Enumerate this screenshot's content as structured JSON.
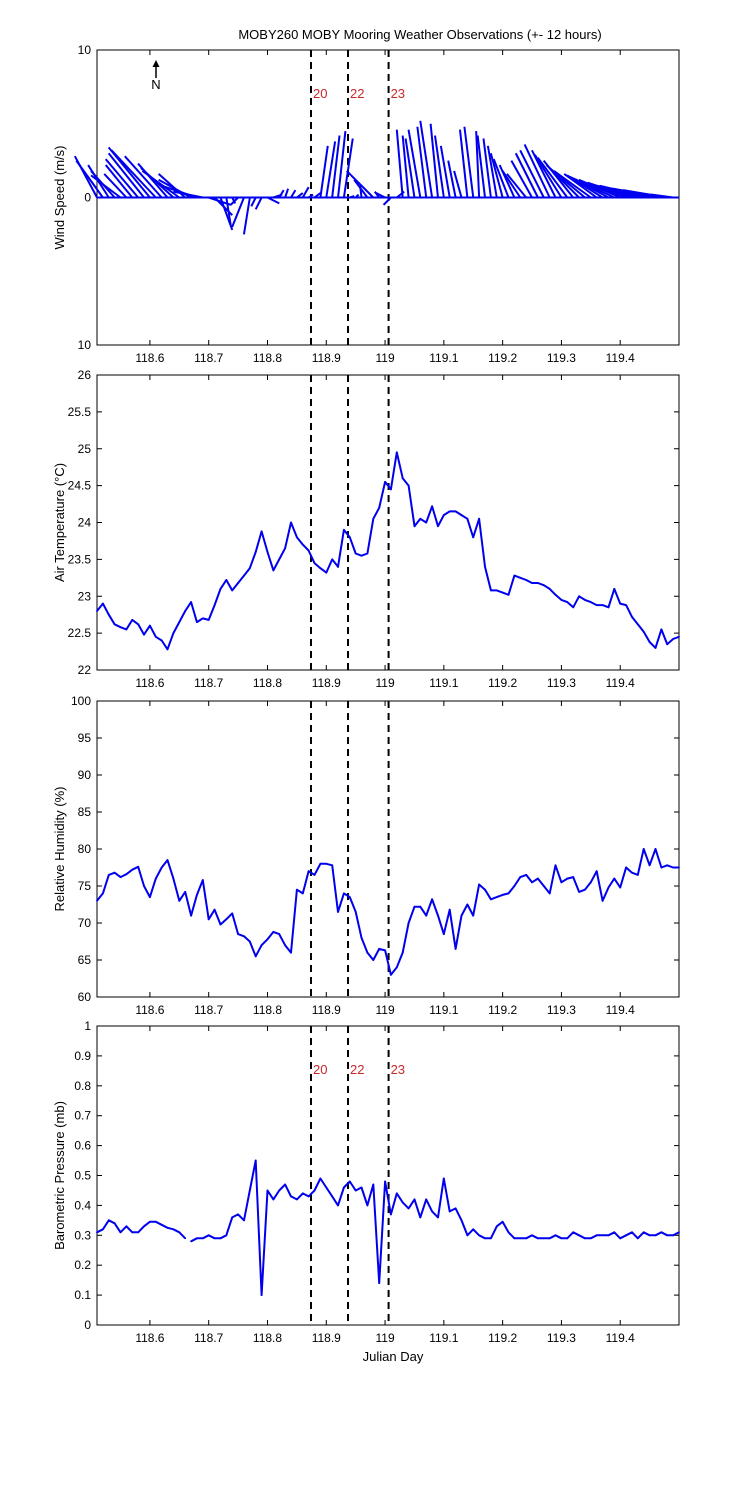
{
  "title": "MOBY260 MOBY Mooring Weather Observations (+- 12 hours)",
  "north_label": "N",
  "xlabel": "Julian Day",
  "x_ticks": [
    118.6,
    118.7,
    118.8,
    118.9,
    119,
    119.1,
    119.2,
    119.3,
    119.4
  ],
  "xlim": [
    118.51,
    119.5
  ],
  "event_lines": [
    {
      "x": 118.874,
      "label": "20"
    },
    {
      "x": 118.937,
      "label": "22"
    },
    {
      "x": 119.006,
      "label": "23"
    }
  ],
  "colors": {
    "line": "#0000ee",
    "marker": "#c8282a",
    "event": "#000000"
  },
  "chart_data": [
    {
      "type": "line",
      "ylabel": "Wind Speed (m/s)",
      "ylim": [
        -10,
        10
      ],
      "y_ticks": [
        10,
        0,
        10
      ],
      "marker_labels": true,
      "stick_plot": true,
      "x": [
        118.51,
        118.52,
        118.53,
        118.54,
        118.55,
        118.56,
        118.57,
        118.58,
        118.59,
        118.6,
        118.61,
        118.62,
        118.63,
        118.64,
        118.65,
        118.66,
        118.67,
        118.68,
        118.69,
        118.7,
        118.71,
        118.72,
        118.73,
        118.74,
        118.75,
        118.76,
        118.77,
        118.78,
        118.79,
        118.8,
        118.81,
        118.82,
        118.83,
        118.84,
        118.85,
        118.86,
        118.87,
        118.88,
        118.89,
        118.9,
        118.91,
        118.92,
        118.93,
        118.94,
        118.95,
        118.96,
        118.97,
        118.98,
        118.99,
        119.0,
        119.01,
        119.02,
        119.03,
        119.04,
        119.05,
        119.06,
        119.07,
        119.08,
        119.09,
        119.1,
        119.11,
        119.12,
        119.13,
        119.14,
        119.15,
        119.16,
        119.17,
        119.18,
        119.19,
        119.2,
        119.21,
        119.22,
        119.23,
        119.24,
        119.25,
        119.26,
        119.27,
        119.28,
        119.29,
        119.3,
        119.31,
        119.32,
        119.33,
        119.34,
        119.35,
        119.36,
        119.37,
        119.38,
        119.39,
        119.4,
        119.41,
        119.42,
        119.43,
        119.44,
        119.45,
        119.46,
        119.47,
        119.48,
        119.49
      ],
      "u": [
        -1.5,
        -1.8,
        -1.4,
        -1.6,
        -2.0,
        -1.5,
        -1.8,
        -2.2,
        -2.4,
        -2.8,
        -3.0,
        -2.5,
        -2.0,
        -2.2,
        -2.5,
        -1.8,
        -2.2,
        -2.4,
        -2.0,
        1.5,
        1.2,
        0.8,
        0.3,
        0.2,
        -0.5,
        -0.8,
        -0.4,
        -0.3,
        -0.4,
        0.8,
        0.6,
        0.3,
        0.2,
        0.3,
        0.4,
        0.4,
        0.3,
        0.4,
        0.5,
        0.6,
        0.5,
        0.5,
        0.6,
        0.3,
        0.2,
        -0.1,
        -0.9,
        -1.8,
        -0.3,
        -0.6,
        -0.5,
        0.5,
        -0.4,
        -0.4,
        -0.6,
        -0.8,
        -0.6,
        -0.8,
        -0.5,
        -0.6,
        -0.6,
        -0.5,
        -0.5,
        -0.5,
        -0.6,
        -0.2,
        -0.5,
        -0.5,
        -0.6,
        -0.8,
        -1.0,
        -1.0,
        -1.2,
        -1.3,
        -1.4,
        -1.5,
        -1.6,
        -1.7,
        -1.6,
        -1.8,
        -2.0,
        -2.0,
        -2.2,
        -2.4,
        -2.5,
        -2.2,
        -2.4,
        -2.6,
        -2.8,
        -2.8,
        -3.0,
        -3.0,
        -3.2,
        -3.2,
        -3.4,
        -3.5,
        -3.3,
        -3.0,
        -1.5
      ],
      "v": [
        2.8,
        2.5,
        2.2,
        1.8,
        1.5,
        1.6,
        2.2,
        2.6,
        3.0,
        3.4,
        3.2,
        2.8,
        2.3,
        2.0,
        1.8,
        1.6,
        1.2,
        0.8,
        0.4,
        -0.5,
        -1.2,
        -2.2,
        -1.9,
        -0.4,
        -0.5,
        -2.0,
        -2.5,
        -0.6,
        -0.8,
        -0.4,
        0.2,
        0.5,
        0.6,
        0.5,
        0.3,
        0.7,
        0.2,
        0.3,
        3.5,
        3.8,
        4.2,
        4.5,
        4.0,
        0.1,
        0.2,
        0.8,
        1.2,
        1.8,
        0.4,
        0.3,
        -0.5,
        0.4,
        4.6,
        4.2,
        4.0,
        4.6,
        4.8,
        5.2,
        5.0,
        4.2,
        3.5,
        2.5,
        1.8,
        4.6,
        4.8,
        4.5,
        4.2,
        4.0,
        3.5,
        3.0,
        2.6,
        2.2,
        1.8,
        1.6,
        2.5,
        3.0,
        3.2,
        3.6,
        3.2,
        2.9,
        2.7,
        2.5,
        2.2,
        2.0,
        1.8,
        1.6,
        1.5,
        1.4,
        1.3,
        1.2,
        1.1,
        1.0,
        0.9,
        0.8,
        0.8,
        0.7,
        0.6,
        0.5,
        0.2
      ]
    },
    {
      "type": "line",
      "ylabel": "Air Temperature (°C)",
      "ylim": [
        22,
        26
      ],
      "y_ticks": [
        22,
        22.5,
        23,
        23.5,
        24,
        24.5,
        25,
        25.5,
        26
      ],
      "marker_labels": false,
      "segments": [
        {
          "x": [
            118.51,
            118.52,
            118.53,
            118.54,
            118.55,
            118.56,
            118.57,
            118.58,
            118.59,
            118.6,
            118.61,
            118.62,
            118.63,
            118.64,
            118.65,
            118.66,
            118.67,
            118.68,
            118.69,
            118.7,
            118.71,
            118.72,
            118.73,
            118.74,
            118.75,
            118.76,
            118.77,
            118.78,
            118.79,
            118.8,
            118.81,
            118.82,
            118.83,
            118.84,
            118.85,
            118.86,
            118.87,
            118.88,
            118.89,
            118.9,
            118.91,
            118.92,
            118.93,
            118.94,
            118.95,
            118.96,
            118.97,
            118.98,
            118.99,
            119.0,
            119.01,
            119.02,
            119.03,
            119.04,
            119.05,
            119.06,
            119.07,
            119.08,
            119.09,
            119.1,
            119.11,
            119.12,
            119.13,
            119.14,
            119.15,
            119.16,
            119.17,
            119.18,
            119.19,
            119.2,
            119.21,
            119.22,
            119.23,
            119.24,
            119.25,
            119.26,
            119.27,
            119.28,
            119.29,
            119.3,
            119.31,
            119.32,
            119.33,
            119.34,
            119.35,
            119.36,
            119.37,
            119.38,
            119.39,
            119.4,
            119.41,
            119.42,
            119.43,
            119.44,
            119.45,
            119.46,
            119.47,
            119.48,
            119.49,
            119.5
          ],
          "y": [
            22.8,
            22.9,
            22.75,
            22.62,
            22.58,
            22.55,
            22.68,
            22.62,
            22.48,
            22.6,
            22.45,
            22.4,
            22.28,
            22.5,
            22.65,
            22.8,
            22.92,
            22.65,
            22.7,
            22.68,
            22.88,
            23.1,
            23.22,
            23.08,
            23.18,
            23.28,
            23.38,
            23.6,
            23.88,
            23.6,
            23.35,
            23.5,
            23.65,
            24.0,
            23.8,
            23.7,
            23.62,
            23.45,
            23.38,
            23.32,
            23.5,
            23.4,
            23.9,
            23.8,
            23.58,
            23.55,
            23.58,
            24.05,
            24.2,
            24.55,
            24.45,
            24.95,
            24.6,
            24.5,
            23.95,
            24.05,
            24.0,
            24.22,
            23.95,
            24.1,
            24.15,
            24.15,
            24.1,
            24.05,
            23.8,
            24.05,
            23.4,
            23.08,
            23.08,
            23.05,
            23.02,
            23.28,
            23.25,
            23.22,
            23.18,
            23.18,
            23.15,
            23.1,
            23.02,
            22.95,
            22.92,
            22.85,
            23.0,
            22.95,
            22.92,
            22.88,
            22.88,
            22.85,
            23.1,
            22.9,
            22.88,
            22.72,
            22.62,
            22.52,
            22.38,
            22.3,
            22.55,
            22.35,
            22.42,
            22.45
          ]
        }
      ]
    },
    {
      "type": "line",
      "ylabel": "Relative Humidity (%)",
      "ylim": [
        60,
        100
      ],
      "y_ticks": [
        60,
        65,
        70,
        75,
        80,
        85,
        90,
        95,
        100
      ],
      "marker_labels": false,
      "segments": [
        {
          "x": [
            118.51,
            118.52,
            118.53,
            118.54,
            118.55,
            118.56,
            118.57,
            118.58,
            118.59,
            118.6,
            118.61,
            118.62,
            118.63,
            118.64,
            118.65,
            118.66,
            118.67,
            118.68,
            118.69,
            118.7,
            118.71,
            118.72,
            118.73,
            118.74,
            118.75,
            118.76,
            118.77,
            118.78,
            118.79,
            118.8,
            118.81,
            118.82,
            118.83,
            118.84,
            118.85,
            118.86,
            118.87,
            118.88,
            118.89,
            118.9,
            118.91,
            118.92,
            118.93,
            118.94,
            118.95,
            118.96,
            118.97,
            118.98,
            118.99,
            119.0,
            119.01,
            119.02,
            119.03,
            119.04,
            119.05,
            119.06,
            119.07,
            119.08,
            119.09,
            119.1,
            119.11,
            119.12,
            119.13,
            119.14,
            119.15,
            119.16,
            119.17,
            119.18,
            119.19,
            119.2,
            119.21,
            119.22,
            119.23,
            119.24,
            119.25,
            119.26,
            119.27,
            119.28,
            119.29,
            119.3,
            119.31,
            119.32,
            119.33,
            119.34,
            119.35,
            119.36,
            119.37,
            119.38,
            119.39,
            119.4,
            119.41,
            119.42,
            119.43,
            119.44,
            119.45,
            119.46,
            119.47,
            119.48,
            119.49,
            119.5
          ],
          "y": [
            73,
            74,
            76.5,
            76.8,
            76.2,
            76.6,
            77.2,
            77.6,
            75,
            73.5,
            76,
            77.5,
            78.5,
            76,
            73,
            74.2,
            71,
            73.8,
            75.8,
            70.5,
            71.8,
            69.8,
            70.5,
            71.3,
            68.5,
            68.2,
            67.5,
            65.5,
            67,
            67.8,
            68.8,
            68.5,
            67,
            66,
            74.5,
            74,
            77,
            76.5,
            78,
            78,
            77.8,
            71.5,
            74,
            73.5,
            71.5,
            68,
            66,
            65,
            66.5,
            66.3,
            63,
            64,
            66,
            70,
            72.2,
            72.2,
            71,
            73.2,
            71,
            68.5,
            71.8,
            66.5,
            71,
            72.5,
            71,
            75.2,
            74.5,
            73.2,
            73.5,
            73.8,
            74,
            75,
            76.2,
            76.5,
            75.5,
            76,
            75,
            74,
            77.8,
            75.5,
            76,
            76.2,
            74.2,
            74.5,
            75.5,
            77,
            73,
            74.8,
            76,
            74.8,
            77.5,
            76.8,
            76.5,
            80,
            77.8,
            80,
            77.5,
            77.8,
            77.5,
            77.5
          ]
        }
      ]
    },
    {
      "type": "line",
      "ylabel": "Barometric Pressure (mb)",
      "ylim": [
        0,
        1
      ],
      "y_ticks": [
        0,
        0.1,
        0.2,
        0.3,
        0.4,
        0.5,
        0.6,
        0.7,
        0.8,
        0.9,
        1
      ],
      "marker_labels": true,
      "segments": [
        {
          "x": [
            118.51,
            118.52,
            118.53,
            118.54,
            118.55,
            118.56,
            118.57,
            118.58,
            118.59,
            118.6,
            118.61,
            118.62,
            118.63,
            118.64,
            118.65,
            118.66
          ],
          "y": [
            0.31,
            0.32,
            0.35,
            0.34,
            0.31,
            0.33,
            0.31,
            0.31,
            0.33,
            0.345,
            0.345,
            0.335,
            0.325,
            0.32,
            0.31,
            0.29
          ]
        },
        {
          "x": [
            118.67,
            118.68,
            118.69,
            118.7,
            118.71,
            118.72,
            118.73,
            118.74,
            118.75,
            118.76,
            118.77,
            118.78,
            118.79,
            118.8,
            118.81,
            118.82,
            118.83,
            118.84,
            118.85,
            118.86,
            118.87,
            118.88,
            118.89,
            118.9,
            118.91,
            118.92,
            118.93,
            118.94,
            118.95,
            118.96,
            118.97,
            118.98,
            118.99,
            119.0,
            119.01,
            119.02,
            119.03,
            119.04,
            119.05,
            119.06,
            119.07,
            119.08,
            119.09,
            119.1,
            119.11,
            119.12,
            119.13,
            119.14,
            119.15,
            119.16,
            119.17,
            119.18,
            119.19,
            119.2,
            119.21,
            119.22,
            119.23,
            119.24,
            119.25,
            119.26,
            119.27,
            119.28,
            119.29,
            119.3,
            119.31,
            119.32,
            119.33,
            119.34,
            119.35,
            119.36,
            119.37,
            119.38,
            119.39,
            119.4,
            119.41,
            119.42,
            119.43,
            119.44,
            119.45,
            119.46,
            119.47,
            119.48,
            119.49,
            119.5
          ],
          "y": [
            0.28,
            0.29,
            0.29,
            0.3,
            0.29,
            0.29,
            0.3,
            0.36,
            0.37,
            0.35,
            0.45,
            0.55,
            0.1,
            0.45,
            0.42,
            0.45,
            0.47,
            0.43,
            0.42,
            0.44,
            0.43,
            0.45,
            0.49,
            0.46,
            0.43,
            0.4,
            0.46,
            0.48,
            0.45,
            0.46,
            0.4,
            0.47,
            0.14,
            0.48,
            0.37,
            0.44,
            0.41,
            0.39,
            0.42,
            0.36,
            0.42,
            0.38,
            0.36,
            0.49,
            0.38,
            0.39,
            0.35,
            0.3,
            0.32,
            0.3,
            0.29,
            0.29,
            0.33,
            0.345,
            0.31,
            0.29,
            0.29,
            0.29,
            0.3,
            0.29,
            0.29,
            0.29,
            0.3,
            0.29,
            0.29,
            0.31,
            0.3,
            0.29,
            0.29,
            0.3,
            0.3,
            0.3,
            0.31,
            0.29,
            0.3,
            0.31,
            0.29,
            0.31,
            0.3,
            0.3,
            0.31,
            0.3,
            0.3,
            0.31
          ]
        }
      ]
    }
  ]
}
